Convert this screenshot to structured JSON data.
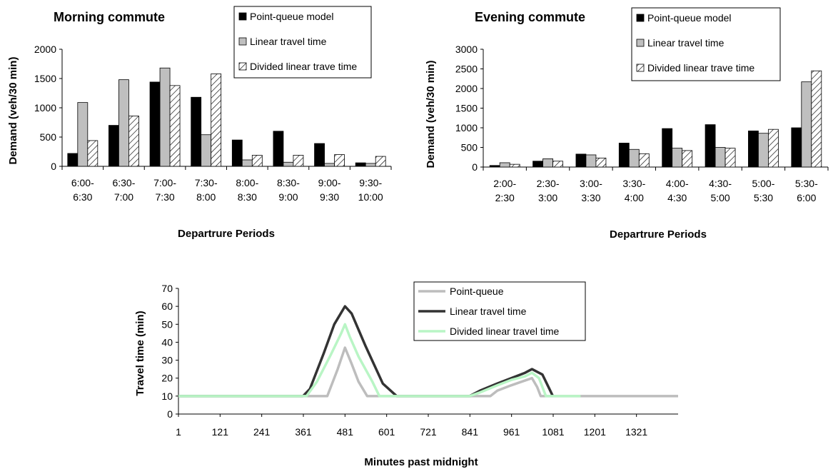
{
  "chart_data": [
    {
      "type": "bar",
      "title": "Morning commute",
      "xlabel": "Departrure Periods",
      "ylabel": "Demand (veh/30 min)",
      "ylim": [
        0,
        2000
      ],
      "yticks": [
        "0",
        "500",
        "1000",
        "1500",
        "2000"
      ],
      "categories": [
        [
          "6:00-",
          "6:30"
        ],
        [
          "6:30-",
          "7:00"
        ],
        [
          "7:00-",
          "7:30"
        ],
        [
          "7:30-",
          "8:00"
        ],
        [
          "8:00-",
          "8:30"
        ],
        [
          "8:30-",
          "9:00"
        ],
        [
          "9:00-",
          "9:30"
        ],
        [
          "9:30-",
          "10:00"
        ]
      ],
      "legend_position": "top-right",
      "series": [
        {
          "name": "Point-queue model",
          "values": [
            220,
            700,
            1440,
            1180,
            450,
            600,
            390,
            60
          ]
        },
        {
          "name": "Linear travel time",
          "values": [
            1090,
            1480,
            1680,
            540,
            110,
            70,
            50,
            50
          ]
        },
        {
          "name": "Divided linear trave time",
          "values": [
            440,
            860,
            1380,
            1580,
            190,
            190,
            200,
            170
          ]
        }
      ],
      "grid": false
    },
    {
      "type": "bar",
      "title": "Evening commute",
      "xlabel": "Departrure Periods",
      "ylabel": "Demand (veh/30 min)",
      "ylim": [
        0,
        3000
      ],
      "yticks": [
        "0",
        "500",
        "1000",
        "1500",
        "2000",
        "2500",
        "3000"
      ],
      "categories": [
        [
          "2:00-",
          "2:30"
        ],
        [
          "2:30-",
          "3:00"
        ],
        [
          "3:00-",
          "3:30"
        ],
        [
          "3:30-",
          "4:00"
        ],
        [
          "4:00-",
          "4:30"
        ],
        [
          "4:30-",
          "5:00"
        ],
        [
          "5:00-",
          "5:30"
        ],
        [
          "5:30-",
          "6:00"
        ]
      ],
      "legend_position": "top-right",
      "series": [
        {
          "name": "Point-queue model",
          "values": [
            40,
            150,
            330,
            610,
            980,
            1080,
            920,
            1000
          ]
        },
        {
          "name": "Linear travel time",
          "values": [
            110,
            210,
            310,
            450,
            480,
            500,
            860,
            2170
          ]
        },
        {
          "name": "Divided linear trave time",
          "values": [
            70,
            150,
            230,
            340,
            420,
            480,
            960,
            2450
          ]
        }
      ],
      "grid": false
    },
    {
      "type": "line",
      "title": "",
      "xlabel": "Minutes past midnight",
      "ylabel": "Travel time (min)",
      "xlim": [
        1,
        1441
      ],
      "ylim": [
        0,
        70
      ],
      "xticks": [
        "1",
        "121",
        "241",
        "361",
        "481",
        "601",
        "721",
        "841",
        "961",
        "1081",
        "1201",
        "1321"
      ],
      "yticks": [
        "0",
        "10",
        "20",
        "30",
        "40",
        "50",
        "60",
        "70"
      ],
      "legend_position": "top-right",
      "series": [
        {
          "name": "Point-queue",
          "color": "#bdbdbd",
          "x": [
            1,
            350,
            390,
            430,
            460,
            481,
            500,
            520,
            545,
            560,
            600,
            840,
            900,
            920,
            960,
            990,
            1020,
            1035,
            1045,
            1441
          ],
          "y": [
            10,
            10,
            10,
            10,
            25,
            37,
            28,
            18,
            10,
            10,
            10,
            10,
            10,
            13,
            16,
            18,
            20,
            15,
            10,
            10
          ]
        },
        {
          "name": "Linear travel time",
          "color": "#333333",
          "x": [
            1,
            360,
            380,
            420,
            450,
            481,
            500,
            540,
            590,
            630,
            840,
            870,
            920,
            960,
            1000,
            1020,
            1050,
            1070,
            1080
          ],
          "y": [
            10,
            10,
            14,
            34,
            50,
            60,
            56,
            38,
            17,
            10,
            10,
            13,
            17,
            20,
            23,
            25,
            22,
            14,
            10
          ]
        },
        {
          "name": "Divided linear travel time",
          "color": "#b9f5c5",
          "x": [
            1,
            370,
            400,
            440,
            470,
            481,
            495,
            520,
            560,
            580,
            840,
            870,
            920,
            960,
            1000,
            1020,
            1040,
            1060,
            1160
          ],
          "y": [
            10,
            10,
            18,
            33,
            45,
            50,
            43,
            32,
            18,
            10,
            10,
            12,
            16,
            19,
            21,
            23,
            20,
            10,
            10
          ]
        }
      ],
      "grid": false
    }
  ]
}
